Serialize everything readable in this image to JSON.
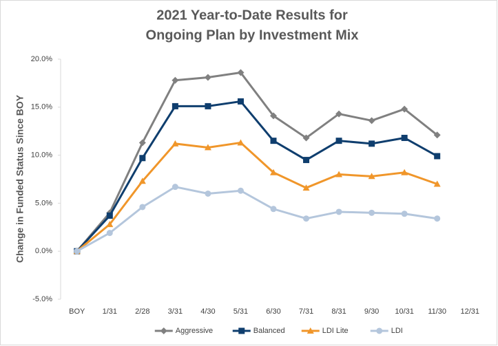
{
  "chart_data": {
    "type": "line",
    "title": [
      "2021 Year-to-Date Results for",
      "Ongoing Plan by Investment Mix"
    ],
    "y_label": "Change in Funded Status Since BOY",
    "categories": [
      "BOY",
      "1/31",
      "2/28",
      "3/31",
      "4/30",
      "5/31",
      "6/30",
      "7/31",
      "8/31",
      "9/30",
      "10/31",
      "11/30",
      "12/31"
    ],
    "series": [
      {
        "name": "Aggressive",
        "color": "#808080",
        "marker": "diamond",
        "values": [
          0,
          4.0,
          11.3,
          17.8,
          18.1,
          18.6,
          14.1,
          11.8,
          14.3,
          13.6,
          14.8,
          12.1,
          null
        ]
      },
      {
        "name": "Balanced",
        "color": "#0f3e6e",
        "marker": "square",
        "values": [
          0,
          3.7,
          9.7,
          15.1,
          15.1,
          15.6,
          11.5,
          9.5,
          11.5,
          11.2,
          11.8,
          9.9,
          null
        ]
      },
      {
        "name": "LDI Lite",
        "color": "#f0962a",
        "marker": "triangle",
        "values": [
          0,
          2.8,
          7.3,
          11.2,
          10.8,
          11.3,
          8.2,
          6.6,
          8.0,
          7.8,
          8.2,
          7.0,
          null
        ]
      },
      {
        "name": "LDI",
        "color": "#b4c6dc",
        "marker": "circle",
        "values": [
          0,
          1.9,
          4.6,
          6.7,
          6.0,
          6.3,
          4.4,
          3.4,
          4.1,
          4.0,
          3.9,
          3.4,
          null
        ]
      }
    ],
    "ylim": [
      -5,
      20
    ],
    "yticks": [
      {
        "value": -5,
        "label": "-5.0%"
      },
      {
        "value": 0,
        "label": "0.0%"
      },
      {
        "value": 5,
        "label": "5.0%"
      },
      {
        "value": 10,
        "label": "10.0%"
      },
      {
        "value": 15,
        "label": "15.0%"
      },
      {
        "value": 20,
        "label": "20.0%"
      }
    ],
    "grid": false,
    "legend": "bottom"
  }
}
